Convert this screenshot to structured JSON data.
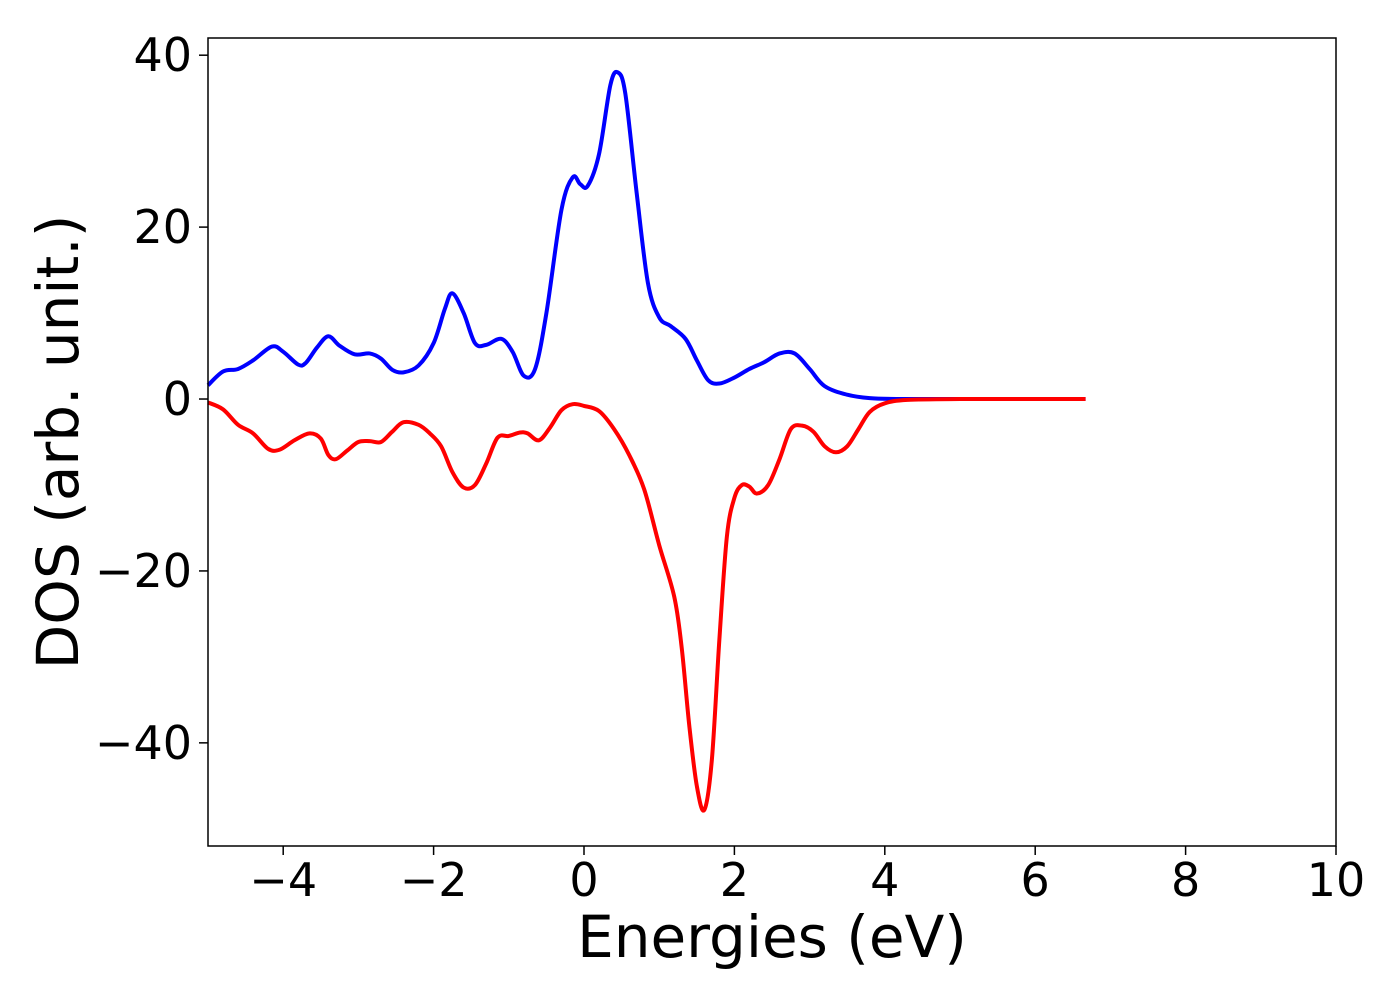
{
  "chart_data": {
    "type": "line",
    "title": "",
    "xlabel": "Energies (eV)",
    "ylabel": "DOS (arb. unit.)",
    "xlim": [
      -5,
      10
    ],
    "ylim": [
      -52,
      42
    ],
    "xticks": [
      -4,
      -2,
      0,
      2,
      4,
      6,
      8,
      10
    ],
    "xtick_labels": [
      "−4",
      "−2",
      "0",
      "2",
      "4",
      "6",
      "8",
      "10"
    ],
    "yticks": [
      40,
      20,
      0,
      -20,
      -40
    ],
    "ytick_labels": [
      "40",
      "20",
      "0",
      "−20",
      "−40"
    ],
    "grid": false,
    "legend": "none",
    "series": [
      {
        "color": "#0000ff",
        "points": [
          [
            -5.0,
            1.6
          ],
          [
            -4.8,
            3.2
          ],
          [
            -4.6,
            3.5
          ],
          [
            -4.4,
            4.5
          ],
          [
            -4.15,
            6.1
          ],
          [
            -4.0,
            5.5
          ],
          [
            -3.8,
            4.0
          ],
          [
            -3.7,
            4.2
          ],
          [
            -3.55,
            6.0
          ],
          [
            -3.4,
            7.3
          ],
          [
            -3.25,
            6.2
          ],
          [
            -3.05,
            5.2
          ],
          [
            -2.85,
            5.3
          ],
          [
            -2.7,
            4.7
          ],
          [
            -2.55,
            3.4
          ],
          [
            -2.4,
            3.1
          ],
          [
            -2.2,
            3.9
          ],
          [
            -2.0,
            6.5
          ],
          [
            -1.85,
            10.5
          ],
          [
            -1.75,
            12.3
          ],
          [
            -1.6,
            10.0
          ],
          [
            -1.45,
            6.5
          ],
          [
            -1.3,
            6.3
          ],
          [
            -1.1,
            7.0
          ],
          [
            -0.95,
            5.5
          ],
          [
            -0.8,
            2.7
          ],
          [
            -0.65,
            3.5
          ],
          [
            -0.5,
            10.0
          ],
          [
            -0.3,
            22.0
          ],
          [
            -0.15,
            25.8
          ],
          [
            -0.05,
            25.0
          ],
          [
            0.05,
            24.8
          ],
          [
            0.2,
            28.5
          ],
          [
            0.35,
            36.5
          ],
          [
            0.45,
            38.0
          ],
          [
            0.55,
            35.5
          ],
          [
            0.7,
            24.0
          ],
          [
            0.85,
            13.5
          ],
          [
            1.0,
            9.5
          ],
          [
            1.15,
            8.5
          ],
          [
            1.35,
            7.0
          ],
          [
            1.5,
            4.5
          ],
          [
            1.65,
            2.2
          ],
          [
            1.8,
            1.8
          ],
          [
            2.0,
            2.5
          ],
          [
            2.2,
            3.5
          ],
          [
            2.4,
            4.3
          ],
          [
            2.6,
            5.3
          ],
          [
            2.8,
            5.3
          ],
          [
            3.0,
            3.5
          ],
          [
            3.2,
            1.5
          ],
          [
            3.5,
            0.5
          ],
          [
            3.8,
            0.1
          ],
          [
            4.2,
            0.0
          ],
          [
            5.0,
            0.0
          ],
          [
            6.0,
            0.0
          ],
          [
            6.67,
            0.0
          ]
        ]
      },
      {
        "color": "#ff0000",
        "points": [
          [
            -5.0,
            -0.4
          ],
          [
            -4.8,
            -1.2
          ],
          [
            -4.6,
            -3.0
          ],
          [
            -4.4,
            -4.0
          ],
          [
            -4.2,
            -5.8
          ],
          [
            -4.05,
            -5.9
          ],
          [
            -3.85,
            -4.8
          ],
          [
            -3.65,
            -4.0
          ],
          [
            -3.5,
            -4.6
          ],
          [
            -3.4,
            -6.5
          ],
          [
            -3.3,
            -7.0
          ],
          [
            -3.15,
            -6.0
          ],
          [
            -3.0,
            -5.0
          ],
          [
            -2.85,
            -4.9
          ],
          [
            -2.7,
            -5.0
          ],
          [
            -2.55,
            -3.8
          ],
          [
            -2.4,
            -2.7
          ],
          [
            -2.2,
            -3.0
          ],
          [
            -2.05,
            -4.0
          ],
          [
            -1.9,
            -5.5
          ],
          [
            -1.75,
            -8.5
          ],
          [
            -1.6,
            -10.3
          ],
          [
            -1.45,
            -10.0
          ],
          [
            -1.3,
            -7.5
          ],
          [
            -1.15,
            -4.5
          ],
          [
            -1.0,
            -4.3
          ],
          [
            -0.85,
            -3.9
          ],
          [
            -0.75,
            -4.0
          ],
          [
            -0.6,
            -4.8
          ],
          [
            -0.45,
            -3.3
          ],
          [
            -0.3,
            -1.3
          ],
          [
            -0.15,
            -0.6
          ],
          [
            0.0,
            -0.8
          ],
          [
            0.2,
            -1.4
          ],
          [
            0.4,
            -3.5
          ],
          [
            0.6,
            -6.5
          ],
          [
            0.8,
            -10.5
          ],
          [
            1.0,
            -17.0
          ],
          [
            1.2,
            -23.0
          ],
          [
            1.3,
            -29.0
          ],
          [
            1.4,
            -38.0
          ],
          [
            1.5,
            -45.0
          ],
          [
            1.6,
            -47.8
          ],
          [
            1.7,
            -42.0
          ],
          [
            1.8,
            -28.0
          ],
          [
            1.9,
            -16.0
          ],
          [
            2.0,
            -11.5
          ],
          [
            2.1,
            -10.0
          ],
          [
            2.2,
            -10.2
          ],
          [
            2.3,
            -11.0
          ],
          [
            2.45,
            -10.0
          ],
          [
            2.6,
            -7.0
          ],
          [
            2.75,
            -3.5
          ],
          [
            2.9,
            -3.1
          ],
          [
            3.05,
            -3.8
          ],
          [
            3.2,
            -5.5
          ],
          [
            3.35,
            -6.2
          ],
          [
            3.5,
            -5.5
          ],
          [
            3.65,
            -3.5
          ],
          [
            3.8,
            -1.5
          ],
          [
            4.0,
            -0.5
          ],
          [
            4.3,
            -0.1
          ],
          [
            5.0,
            0.0
          ],
          [
            6.0,
            0.0
          ],
          [
            6.67,
            0.0
          ]
        ]
      }
    ]
  }
}
